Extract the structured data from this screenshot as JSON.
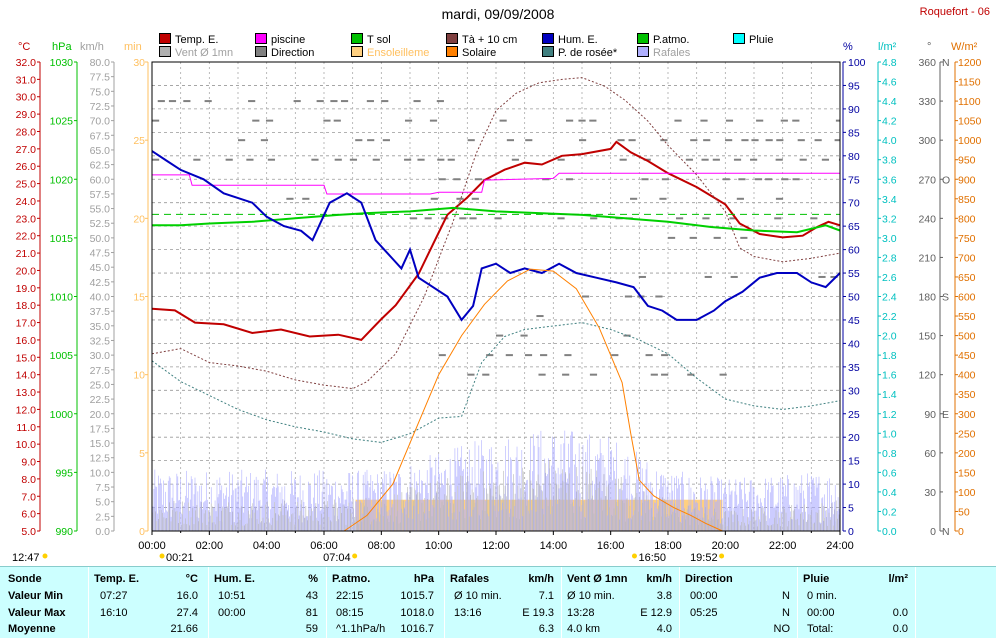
{
  "title": "mardi, 09/09/2008",
  "station": "Roquefort - 06",
  "colors": {
    "temp": "#c00000",
    "piscine": "#ff00ff",
    "tsol": "#00c000",
    "t10": "#804040",
    "hum": "#0000c0",
    "patmo": "#00c000",
    "pluie": "#00c0c0",
    "vent": "#8080ff",
    "rafales": "#b0b0b0",
    "direction": "#808080",
    "ensol": "#ffd080",
    "solaire": "#ff8000",
    "rosee": "#408080"
  },
  "legend": [
    {
      "label": "Temp. E.",
      "color": "#c00000",
      "muted": false
    },
    {
      "label": "piscine",
      "color": "#ff00ff",
      "muted": false
    },
    {
      "label": "T sol",
      "color": "#00c000",
      "muted": false
    },
    {
      "label": "Tà + 10 cm",
      "color": "#804040",
      "muted": false
    },
    {
      "label": "Hum. E.",
      "color": "#0000c0",
      "muted": false
    },
    {
      "label": "P.atmo.",
      "color": "#00c000",
      "muted": false
    },
    {
      "label": "Pluie",
      "color": "#00ffff",
      "muted": false
    },
    {
      "label": "Vent Ø 1mn",
      "color": "#b0b0b0",
      "muted": true
    },
    {
      "label": "Direction",
      "color": "#808080",
      "muted": false
    },
    {
      "label": "Ensoleilleme",
      "color": "#ffd080",
      "muted": true
    },
    {
      "label": "Solaire",
      "color": "#ff8000",
      "muted": false
    },
    {
      "label": "P. de rosée*",
      "color": "#408080",
      "muted": false
    },
    {
      "label": "Rafales",
      "color": "#b0b0ff",
      "muted": true
    }
  ],
  "axis_titles": {
    "temp": "°C",
    "patm": "hPa",
    "vent": "km/h",
    "min": "min",
    "hum": "%",
    "pluie": "l/m²",
    "dir": "°",
    "sol": "W/m²"
  },
  "time_markers": {
    "sunrise_clock": "12:47",
    "t1": "00:21",
    "t2": "07:04",
    "t3": "16:50",
    "t4": "19:52"
  },
  "summary": {
    "headers": {
      "sonde": "Sonde",
      "temp": "Temp. E.",
      "temp_u": "°C",
      "hum": "Hum. E.",
      "hum_u": "%",
      "patm": "P.atmo.",
      "patm_u": "hPa",
      "raf": "Rafales",
      "raf_u": "km/h",
      "vent": "Vent Ø 1mn",
      "vent_u": "km/h",
      "dir": "Direction",
      "pluie": "Pluie",
      "pluie_u": "l/m²"
    },
    "rows": [
      {
        "label": "Valeur Min",
        "temp_t": "07:27",
        "temp_v": "16.0",
        "hum_t": "10:51",
        "hum_v": "43",
        "patm_t": "22:15",
        "patm_v": "1015.7",
        "raf_t": "Ø 10 min.",
        "raf_v": "7.1",
        "vent_t": "Ø 10 min.",
        "vent_v": "3.8",
        "dir_t": "00:00",
        "dir_v": "N",
        "pluie_t": "0 min.",
        "pluie_v": ""
      },
      {
        "label": "Valeur Max",
        "temp_t": "16:10",
        "temp_v": "27.4",
        "hum_t": "00:00",
        "hum_v": "81",
        "patm_t": "08:15",
        "patm_v": "1018.0",
        "raf_t": "13:16",
        "raf_v": "E 19.3",
        "vent_t": "13:28",
        "vent_v": "E 12.9",
        "dir_t": "05:25",
        "dir_v": "N",
        "pluie_t": "00:00",
        "pluie_v": "0.0"
      },
      {
        "label": "Moyenne",
        "temp_t": "",
        "temp_v": "21.66",
        "hum_t": "",
        "hum_v": "59",
        "patm_t": "^1.1hPa/h",
        "patm_v": "1016.7",
        "raf_t": "",
        "raf_v": "6.3",
        "vent_t": "4.0 km",
        "vent_v": "4.0",
        "dir_t": "",
        "dir_v": "NO",
        "pluie_t": "Total:",
        "pluie_v": "0.0"
      }
    ]
  },
  "chart_data": {
    "type": "line",
    "x_unit": "hours",
    "xlim": [
      0,
      24
    ],
    "x_ticks": [
      "00:00",
      "02:00",
      "04:00",
      "06:00",
      "08:00",
      "10:00",
      "12:00",
      "14:00",
      "16:00",
      "18:00",
      "20:00",
      "22:00",
      "24:00"
    ],
    "axes": {
      "temp": {
        "min": 5,
        "max": 32,
        "step": 1,
        "decimals": 1
      },
      "patm": {
        "min": 990,
        "max": 1030,
        "step": 5,
        "decimals": 0
      },
      "vent": {
        "min": 0,
        "max": 80,
        "step": 2.5,
        "decimals": 1
      },
      "min": {
        "min": 0,
        "max": 30,
        "step": 5,
        "decimals": 0
      },
      "hum": {
        "min": 0,
        "max": 100,
        "step": 5,
        "decimals": 0
      },
      "pluie": {
        "min": 0,
        "max": 4.8,
        "step": 0.2,
        "decimals": 1
      },
      "dir": {
        "min": 0,
        "max": 360,
        "step": 30,
        "decimals": 0,
        "cardinal": {
          "0": "N",
          "90": "E",
          "180": "S",
          "270": "O",
          "360": "N"
        }
      },
      "sol": {
        "min": 0,
        "max": 1200,
        "step": 50,
        "decimals": 0
      }
    },
    "series": [
      {
        "name": "Temp. E.",
        "axis": "temp",
        "color": "#c00000",
        "width": 2,
        "points": [
          [
            0,
            17.8
          ],
          [
            0.8,
            17.7
          ],
          [
            1.5,
            17.0
          ],
          [
            2.5,
            16.9
          ],
          [
            3.5,
            16.4
          ],
          [
            4.5,
            16.6
          ],
          [
            5.5,
            16.2
          ],
          [
            6.5,
            16.3
          ],
          [
            7.3,
            16.0
          ],
          [
            8.0,
            17.2
          ],
          [
            8.5,
            18.0
          ],
          [
            9.3,
            19.8
          ],
          [
            9.8,
            21.5
          ],
          [
            10.3,
            23.2
          ],
          [
            11.0,
            24.2
          ],
          [
            11.6,
            25.2
          ],
          [
            12.3,
            25.8
          ],
          [
            13.0,
            26.2
          ],
          [
            13.6,
            26.1
          ],
          [
            14.3,
            26.6
          ],
          [
            15.0,
            26.7
          ],
          [
            16.0,
            27.0
          ],
          [
            16.2,
            27.4
          ],
          [
            16.7,
            26.8
          ],
          [
            17.3,
            26.3
          ],
          [
            18.0,
            25.6
          ],
          [
            19.0,
            24.8
          ],
          [
            20.0,
            23.8
          ],
          [
            20.5,
            22.7
          ],
          [
            21.2,
            22.1
          ],
          [
            22.0,
            21.9
          ],
          [
            22.7,
            22.0
          ],
          [
            23.2,
            22.5
          ],
          [
            23.6,
            22.8
          ],
          [
            24.0,
            22.6
          ]
        ]
      },
      {
        "name": "piscine",
        "axis": "temp",
        "color": "#ff00ff",
        "width": 1,
        "points": [
          [
            0,
            25.5
          ],
          [
            1.3,
            25.5
          ],
          [
            1.4,
            24.9
          ],
          [
            6.0,
            24.9
          ],
          [
            6.1,
            24.4
          ],
          [
            9.7,
            24.4
          ],
          [
            10.0,
            24.5
          ],
          [
            11.5,
            24.5
          ],
          [
            11.6,
            25.2
          ],
          [
            14.0,
            25.3
          ],
          [
            14.2,
            25.6
          ],
          [
            24.0,
            25.6
          ]
        ]
      },
      {
        "name": "T sol",
        "axis": "temp",
        "color": "#00d000",
        "width": 2,
        "points": [
          [
            0,
            22.6
          ],
          [
            1.0,
            22.6
          ],
          [
            2.0,
            22.7
          ],
          [
            3.5,
            22.8
          ],
          [
            5.0,
            23.0
          ],
          [
            6.5,
            23.2
          ],
          [
            7.5,
            23.3
          ],
          [
            9.0,
            23.4
          ],
          [
            10.5,
            23.6
          ],
          [
            12.0,
            23.4
          ],
          [
            13.5,
            23.3
          ],
          [
            15.0,
            23.2
          ],
          [
            16.5,
            23.0
          ],
          [
            18.0,
            22.8
          ],
          [
            19.5,
            22.5
          ],
          [
            21.0,
            22.3
          ],
          [
            22.5,
            22.2
          ],
          [
            23.5,
            22.6
          ],
          [
            24.0,
            22.3
          ]
        ]
      },
      {
        "name": "P.atmo.",
        "axis": "patm",
        "color": "#00c000",
        "width": 1,
        "dash": "7,5",
        "points": [
          [
            0,
            1017.0
          ],
          [
            24,
            1017.0
          ]
        ]
      },
      {
        "name": "Tà + 10 cm",
        "axis": "temp",
        "color": "#804040",
        "width": 1,
        "dash": "2,2",
        "points": [
          [
            0,
            15.2
          ],
          [
            1.0,
            15.5
          ],
          [
            2.0,
            14.7
          ],
          [
            3.0,
            14.5
          ],
          [
            4.0,
            14.2
          ],
          [
            5.0,
            13.7
          ],
          [
            6.0,
            13.4
          ],
          [
            7.0,
            13.2
          ],
          [
            7.5,
            13.6
          ],
          [
            8.5,
            15.2
          ],
          [
            9.5,
            18.5
          ],
          [
            10.5,
            22.8
          ],
          [
            11.3,
            26.7
          ],
          [
            12.0,
            29.2
          ],
          [
            12.7,
            30.2
          ],
          [
            13.5,
            30.8
          ],
          [
            14.3,
            31.0
          ],
          [
            15.0,
            31.1
          ],
          [
            15.8,
            30.6
          ],
          [
            16.5,
            29.8
          ],
          [
            17.3,
            28.6
          ],
          [
            18.0,
            27.2
          ],
          [
            19.0,
            25.5
          ],
          [
            20.0,
            23.4
          ],
          [
            20.5,
            21.3
          ],
          [
            21.0,
            20.8
          ],
          [
            22.0,
            20.5
          ],
          [
            23.0,
            20.7
          ],
          [
            24.0,
            21.0
          ]
        ]
      },
      {
        "name": "P. de rosée*",
        "axis": "temp",
        "color": "#408080",
        "width": 1,
        "dash": "2,2",
        "points": [
          [
            0,
            14.8
          ],
          [
            1.0,
            13.6
          ],
          [
            2.0,
            12.8
          ],
          [
            3.0,
            12.0
          ],
          [
            4.0,
            11.4
          ],
          [
            5.0,
            11.0
          ],
          [
            6.0,
            10.7
          ],
          [
            7.0,
            10.3
          ],
          [
            8.0,
            10.1
          ],
          [
            9.0,
            10.6
          ],
          [
            10.0,
            11.5
          ],
          [
            10.8,
            11.6
          ],
          [
            11.5,
            14.7
          ],
          [
            12.3,
            16.2
          ],
          [
            13.0,
            16.6
          ],
          [
            14.0,
            16.8
          ],
          [
            15.0,
            17.0
          ],
          [
            16.0,
            16.6
          ],
          [
            17.0,
            16.0
          ],
          [
            18.0,
            15.2
          ],
          [
            19.0,
            13.8
          ],
          [
            20.0,
            12.6
          ],
          [
            21.0,
            12.2
          ],
          [
            22.0,
            12.0
          ],
          [
            23.0,
            12.2
          ],
          [
            24.0,
            12.5
          ]
        ]
      },
      {
        "name": "Hum. E.",
        "axis": "hum",
        "color": "#0000c0",
        "width": 2,
        "points": [
          [
            0,
            81
          ],
          [
            0.5,
            79
          ],
          [
            1.0,
            77
          ],
          [
            1.8,
            75
          ],
          [
            2.5,
            72
          ],
          [
            3.5,
            70
          ],
          [
            4.0,
            67
          ],
          [
            4.6,
            65
          ],
          [
            5.2,
            64
          ],
          [
            5.6,
            62
          ],
          [
            6.2,
            70
          ],
          [
            6.8,
            72
          ],
          [
            7.3,
            70
          ],
          [
            7.8,
            62
          ],
          [
            8.4,
            58
          ],
          [
            8.7,
            56
          ],
          [
            9.0,
            60
          ],
          [
            9.3,
            54
          ],
          [
            9.8,
            52
          ],
          [
            10.3,
            50
          ],
          [
            10.8,
            45
          ],
          [
            11.2,
            48
          ],
          [
            11.5,
            56
          ],
          [
            12.0,
            57
          ],
          [
            12.5,
            55
          ],
          [
            13.0,
            56
          ],
          [
            13.6,
            55
          ],
          [
            14.2,
            57
          ],
          [
            14.8,
            55
          ],
          [
            15.5,
            54
          ],
          [
            16.2,
            53
          ],
          [
            16.8,
            52
          ],
          [
            17.3,
            48
          ],
          [
            17.8,
            47
          ],
          [
            18.3,
            45
          ],
          [
            19.0,
            45
          ],
          [
            19.6,
            47
          ],
          [
            20.0,
            49
          ],
          [
            20.6,
            51
          ],
          [
            21.2,
            54
          ],
          [
            21.8,
            55
          ],
          [
            22.5,
            55
          ],
          [
            23.0,
            53
          ],
          [
            23.5,
            52
          ],
          [
            24.0,
            55
          ]
        ]
      },
      {
        "name": "Solaire",
        "axis": "sol",
        "color": "#ff8000",
        "width": 1,
        "points": [
          [
            6.7,
            0
          ],
          [
            7.5,
            40
          ],
          [
            8.4,
            120
          ],
          [
            9.2,
            260
          ],
          [
            10.0,
            400
          ],
          [
            10.8,
            500
          ],
          [
            11.6,
            580
          ],
          [
            12.4,
            640
          ],
          [
            13.2,
            670
          ],
          [
            14.0,
            665
          ],
          [
            14.8,
            620
          ],
          [
            15.6,
            520
          ],
          [
            16.4,
            380
          ],
          [
            16.7,
            250
          ],
          [
            17.0,
            130
          ],
          [
            17.5,
            90
          ],
          [
            18.2,
            60
          ],
          [
            18.8,
            40
          ],
          [
            19.3,
            20
          ],
          [
            19.9,
            0
          ]
        ]
      }
    ],
    "gust_bars": {
      "axis": "vent",
      "color": "#b0b0ff",
      "profile": [
        [
          0,
          7
        ],
        [
          6,
          7
        ],
        [
          8,
          7
        ],
        [
          10,
          9
        ],
        [
          12,
          11
        ],
        [
          14,
          12
        ],
        [
          16,
          11
        ],
        [
          18,
          7
        ],
        [
          20,
          6
        ],
        [
          24,
          7
        ]
      ]
    },
    "wind_line": {
      "axis": "vent",
      "color": "#8080ff",
      "profile": [
        [
          0,
          3
        ],
        [
          6,
          3
        ],
        [
          8,
          3.5
        ],
        [
          10,
          5
        ],
        [
          12,
          6
        ],
        [
          14,
          7
        ],
        [
          16,
          6
        ],
        [
          18,
          3
        ],
        [
          20,
          2
        ],
        [
          24,
          3
        ]
      ]
    },
    "sunshine": {
      "axis": "min",
      "color": "#ffd080",
      "from": 7.1,
      "to": 19.9,
      "value": 2
    },
    "direction": {
      "axis": "dir",
      "color": "#808080"
    }
  }
}
